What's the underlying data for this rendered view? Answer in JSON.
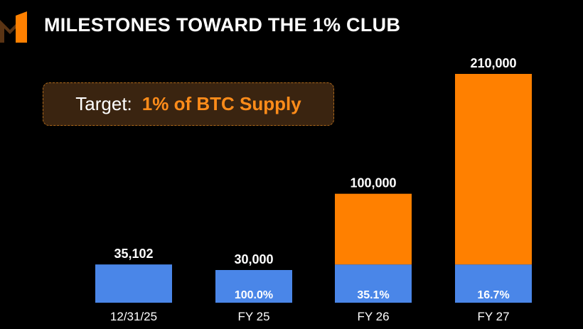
{
  "header": {
    "title": "MILESTONES TOWARD THE 1% CLUB",
    "logo_icon": "strategy-m-logo-icon"
  },
  "target": {
    "label": "Target:",
    "value": "1% of BTC Supply"
  },
  "colors": {
    "background": "#000000",
    "current_holdings": "#4a86e8",
    "target_remaining": "#ff8000",
    "accent": "#ff8c1a"
  },
  "chart_data": {
    "type": "bar",
    "stacked": true,
    "categories": [
      "12/31/25",
      "FY 25",
      "FY 26",
      "FY 27"
    ],
    "totals": [
      35102,
      30000,
      100000,
      210000
    ],
    "total_labels": [
      "35,102",
      "30,000",
      "100,000",
      "210,000"
    ],
    "series": [
      {
        "values": [
          35102,
          30000,
          35102,
          35102
        ]
      },
      {
        "values": [
          0,
          0,
          64898,
          174898
        ]
      }
    ],
    "percent_labels": [
      "",
      "100.0%",
      "35.1%",
      "16.7%"
    ],
    "legend": "none",
    "grid": false
  }
}
